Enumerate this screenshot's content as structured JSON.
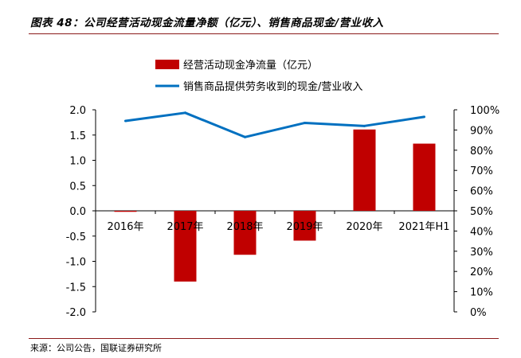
{
  "header": {
    "title": "图表 48：公司经营活动现金流量净额（亿元）、销售商品现金/营业收入"
  },
  "footer": {
    "source": "来源：公司公告，国联证券研究所"
  },
  "colors": {
    "bar": "#c00000",
    "line": "#0070c0",
    "rule": "#8b1a1a"
  },
  "chart_data": {
    "type": "bar",
    "categories": [
      "2016年",
      "2017年",
      "2018年",
      "2019年",
      "2020年",
      "2021年H1"
    ],
    "series": [
      {
        "name": "经营活动现金净流量（亿元）",
        "type": "bar",
        "axis": "left",
        "values": [
          -0.02,
          -1.4,
          -0.87,
          -0.59,
          1.61,
          1.33
        ]
      },
      {
        "name": "销售商品提供劳务收到的现金/营业收入",
        "type": "line",
        "axis": "right",
        "values": [
          0.945,
          0.985,
          0.865,
          0.935,
          0.92,
          0.965
        ]
      }
    ],
    "y_left": {
      "min": -2.0,
      "max": 2.0,
      "step": 0.5,
      "tick_labels": [
        "2.0",
        "1.5",
        "1.0",
        "0.5",
        "0.0",
        "-0.5",
        "-1.0",
        "-1.5",
        "-2.0"
      ]
    },
    "y_right": {
      "min": 0,
      "max": 1.0,
      "step": 0.1,
      "tick_labels": [
        "100%",
        "90%",
        "80%",
        "70%",
        "60%",
        "50%",
        "40%",
        "30%",
        "20%",
        "10%",
        "0%"
      ]
    },
    "legend_position": "top"
  }
}
